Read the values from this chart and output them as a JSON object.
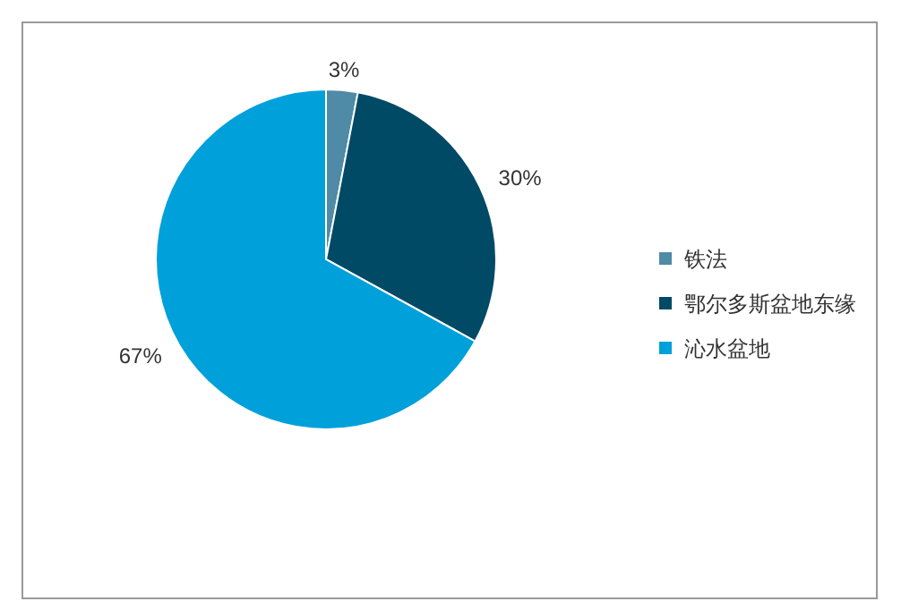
{
  "chart_data": {
    "type": "pie",
    "categories": [
      "铁法",
      "鄂尔多斯盆地东缘",
      "沁水盆地"
    ],
    "values": [
      3,
      30,
      67
    ],
    "colors": [
      "#4f8aa6",
      "#004a66",
      "#00a0da"
    ],
    "value_labels": [
      "3%",
      "30%",
      "67%"
    ],
    "legend": "right"
  }
}
